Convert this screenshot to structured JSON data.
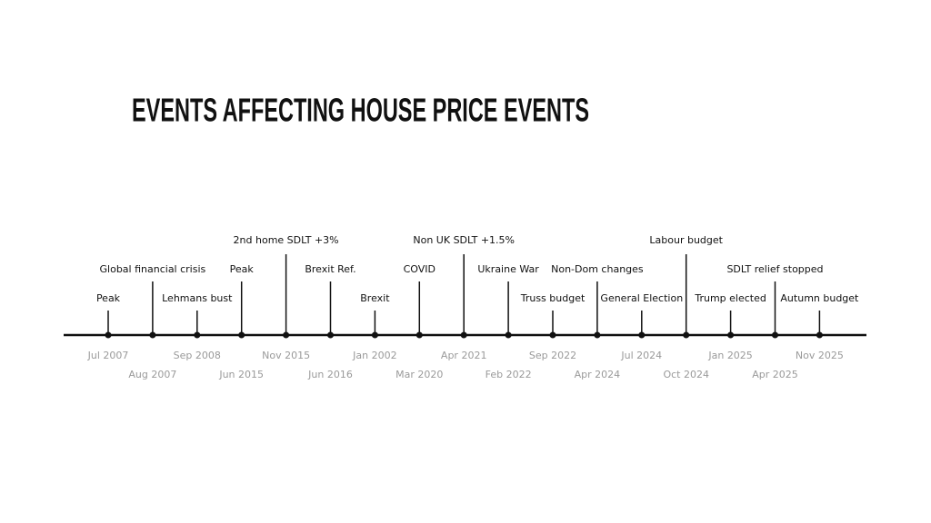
{
  "title": "EVENTS AFFECTING HOUSE PRICE EVENTS",
  "events": [
    {
      "label": "Peak",
      "date": "Jul 2007"
    },
    {
      "label": "Global financial crisis",
      "date": "Aug 2007"
    },
    {
      "label": "Lehmans bust",
      "date": "Sep 2008"
    },
    {
      "label": "Peak",
      "date": "Jun 2015"
    },
    {
      "label": "2nd home SDLT +3%",
      "date": "Nov 2015"
    },
    {
      "label": "Brexit Ref.",
      "date": "Jun 2016"
    },
    {
      "label": "Brexit",
      "date": "Jan 2002"
    },
    {
      "label": "COVID",
      "date": "Mar 2020"
    },
    {
      "label": "Non UK SDLT +1.5%",
      "date": "Apr 2021"
    },
    {
      "label": "Ukraine War",
      "date": "Feb 2022"
    },
    {
      "label": "Truss budget",
      "date": "Sep 2022"
    },
    {
      "label": "Non-Dom changes",
      "date": "Apr 2024"
    },
    {
      "label": "General Election",
      "date": "Jul 2024"
    },
    {
      "label": "Labour budget",
      "date": "Oct 2024"
    },
    {
      "label": "Trump elected",
      "date": "Jan 2025"
    },
    {
      "label": "SDLT relief stopped",
      "date": "Apr 2025"
    },
    {
      "label": "Autumn budget",
      "date": "Nov 2025"
    }
  ]
}
